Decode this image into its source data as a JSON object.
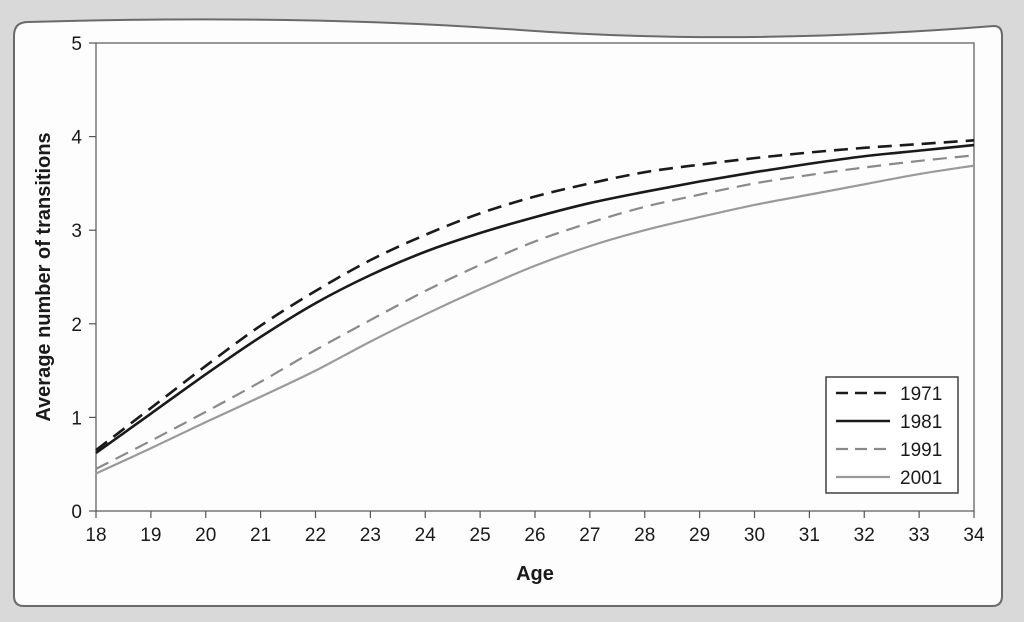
{
  "chart_data": {
    "type": "line",
    "title": "",
    "xlabel": "Age",
    "ylabel": "Average number of transitions",
    "xlim": [
      18,
      34
    ],
    "ylim": [
      0,
      5
    ],
    "x_ticks": [
      "18",
      "19",
      "20",
      "21",
      "22",
      "23",
      "24",
      "25",
      "26",
      "27",
      "28",
      "29",
      "30",
      "31",
      "32",
      "33",
      "34"
    ],
    "y_ticks": [
      "0",
      "1",
      "2",
      "3",
      "4",
      "5"
    ],
    "x": [
      18,
      19,
      20,
      21,
      22,
      23,
      24,
      25,
      26,
      27,
      28,
      29,
      30,
      31,
      32,
      33,
      34
    ],
    "grid": false,
    "legend_position": "bottom-right",
    "series": [
      {
        "name": "1971",
        "color": "#1a1a1a",
        "style": "dashed",
        "values": [
          0.65,
          1.1,
          1.55,
          1.98,
          2.35,
          2.68,
          2.95,
          3.18,
          3.36,
          3.5,
          3.62,
          3.7,
          3.77,
          3.83,
          3.88,
          3.92,
          3.96
        ]
      },
      {
        "name": "1981",
        "color": "#1a1a1a",
        "style": "solid",
        "values": [
          0.62,
          1.04,
          1.46,
          1.86,
          2.22,
          2.52,
          2.77,
          2.97,
          3.14,
          3.29,
          3.41,
          3.52,
          3.62,
          3.71,
          3.79,
          3.85,
          3.91
        ]
      },
      {
        "name": "1991",
        "color": "#8a8a8a",
        "style": "dashed",
        "values": [
          0.45,
          0.75,
          1.06,
          1.38,
          1.72,
          2.04,
          2.35,
          2.63,
          2.88,
          3.08,
          3.25,
          3.38,
          3.5,
          3.59,
          3.67,
          3.74,
          3.8
        ]
      },
      {
        "name": "2001",
        "color": "#9a9a9a",
        "style": "solid",
        "values": [
          0.4,
          0.67,
          0.95,
          1.22,
          1.5,
          1.81,
          2.1,
          2.37,
          2.62,
          2.83,
          3.0,
          3.14,
          3.27,
          3.38,
          3.49,
          3.6,
          3.69
        ]
      }
    ]
  }
}
